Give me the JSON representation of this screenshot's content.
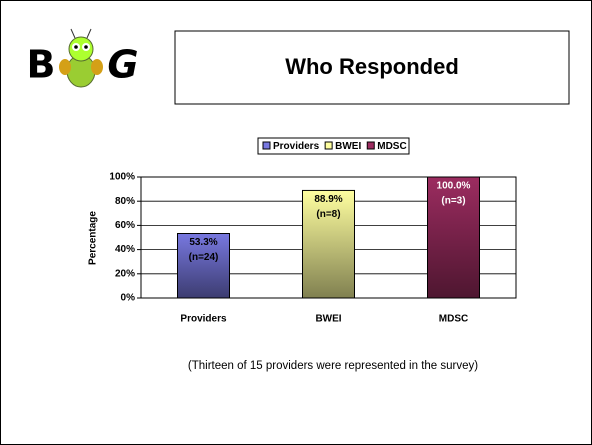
{
  "logo": {
    "left": "B",
    "right": "G"
  },
  "chart_data": {
    "type": "bar",
    "title": "Who Responded",
    "y_label": "Percentage",
    "categories": [
      "Providers",
      "BWEI",
      "MDSC"
    ],
    "values": [
      53.3,
      88.9,
      100.0
    ],
    "value_labels": [
      "53.3%",
      "88.9%",
      "100.0%"
    ],
    "n_labels": [
      "(n=24)",
      "(n=8)",
      "(n=3)"
    ],
    "colors": [
      "#7878e0",
      "#ffffa0",
      "#9c2c60"
    ],
    "ylim": [
      0,
      100
    ],
    "yticks": [
      {
        "value": 0,
        "label": "0%"
      },
      {
        "value": 20,
        "label": "20%"
      },
      {
        "value": 40,
        "label": "40%"
      },
      {
        "value": 60,
        "label": "60%"
      },
      {
        "value": 80,
        "label": "80%"
      },
      {
        "value": 100,
        "label": "100%"
      }
    ],
    "grid": true,
    "legend": "top",
    "caption": "(Thirteen of 15 providers were represented in the survey)"
  }
}
